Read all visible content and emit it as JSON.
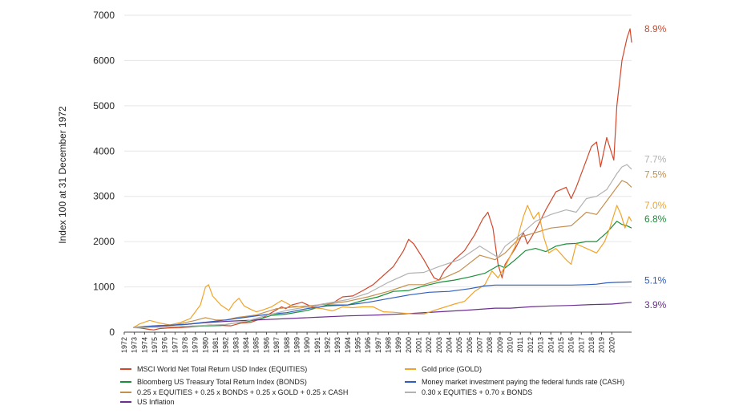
{
  "chart_data": {
    "type": "line",
    "ylabel": "Index 100 at 31 December 1972",
    "ylim": [
      0,
      7000
    ],
    "yticks": [
      "0",
      "1000",
      "2000",
      "3000",
      "4000",
      "5000",
      "6000",
      "7000"
    ],
    "xticks": [
      "1972",
      "1973",
      "1974",
      "1975",
      "1976",
      "1977",
      "1978",
      "1979",
      "1980",
      "1981",
      "1982",
      "1983",
      "1984",
      "1985",
      "1986",
      "1987",
      "1988",
      "1989",
      "1990",
      "1991",
      "1992",
      "1993",
      "1994",
      "1995",
      "1996",
      "1997",
      "1998",
      "1999",
      "2000",
      "2001",
      "2002",
      "2003",
      "2004",
      "2005",
      "2006",
      "2007",
      "2008",
      "2009",
      "2010",
      "2011",
      "2012",
      "2013",
      "2014",
      "2015",
      "2016",
      "2017",
      "2018",
      "2019",
      "2020"
    ],
    "grid": true,
    "legend_position": "bottom",
    "series": [
      {
        "name": "MSCI World Net Total Return USD Index (EQUITIES)",
        "color": "#d2472b",
        "end_label": "8.9%",
        "points": [
          [
            1972.9,
            100
          ],
          [
            1973.5,
            95
          ],
          [
            1974.5,
            60
          ],
          [
            1974.9,
            50
          ],
          [
            1975.5,
            80
          ],
          [
            1976.5,
            95
          ],
          [
            1977.5,
            100
          ],
          [
            1978.5,
            115
          ],
          [
            1979.5,
            135
          ],
          [
            1980.5,
            160
          ],
          [
            1981.5,
            150
          ],
          [
            1982.5,
            140
          ],
          [
            1983.5,
            200
          ],
          [
            1984.5,
            220
          ],
          [
            1985.5,
            300
          ],
          [
            1986.5,
            430
          ],
          [
            1987.5,
            560
          ],
          [
            1987.9,
            520
          ],
          [
            1988.5,
            600
          ],
          [
            1989.5,
            660
          ],
          [
            1990.5,
            560
          ],
          [
            1991.5,
            620
          ],
          [
            1992.5,
            640
          ],
          [
            1993.5,
            780
          ],
          [
            1994.5,
            800
          ],
          [
            1995.5,
            920
          ],
          [
            1996.5,
            1050
          ],
          [
            1997.5,
            1250
          ],
          [
            1998.5,
            1450
          ],
          [
            1999.5,
            1800
          ],
          [
            2000.0,
            2050
          ],
          [
            2000.5,
            1950
          ],
          [
            2001.5,
            1600
          ],
          [
            2002.5,
            1200
          ],
          [
            2003.0,
            1150
          ],
          [
            2003.5,
            1350
          ],
          [
            2004.5,
            1600
          ],
          [
            2005.5,
            1800
          ],
          [
            2006.5,
            2150
          ],
          [
            2007.3,
            2500
          ],
          [
            2007.8,
            2650
          ],
          [
            2008.3,
            2300
          ],
          [
            2008.8,
            1500
          ],
          [
            2009.2,
            1200
          ],
          [
            2009.5,
            1500
          ],
          [
            2010.5,
            1850
          ],
          [
            2011.3,
            2200
          ],
          [
            2011.7,
            1950
          ],
          [
            2012.5,
            2250
          ],
          [
            2013.5,
            2700
          ],
          [
            2014.5,
            3100
          ],
          [
            2015.5,
            3200
          ],
          [
            2016.0,
            2950
          ],
          [
            2016.5,
            3200
          ],
          [
            2017.5,
            3800
          ],
          [
            2018.0,
            4100
          ],
          [
            2018.5,
            4200
          ],
          [
            2018.9,
            3650
          ],
          [
            2019.5,
            4300
          ],
          [
            2020.2,
            3800
          ],
          [
            2020.5,
            5000
          ],
          [
            2021.0,
            6000
          ],
          [
            2021.5,
            6500
          ],
          [
            2021.8,
            6700
          ],
          [
            2021.95,
            6400
          ]
        ]
      },
      {
        "name": "Bloomberg US Treasury Total Return Index (BONDS)",
        "color": "#1a8f3a",
        "end_label": "6.8%",
        "points": [
          [
            1972.9,
            100
          ],
          [
            1975.0,
            110
          ],
          [
            1978.0,
            130
          ],
          [
            1980.0,
            140
          ],
          [
            1981.5,
            145
          ],
          [
            1982.5,
            190
          ],
          [
            1984.0,
            230
          ],
          [
            1985.5,
            300
          ],
          [
            1986.5,
            370
          ],
          [
            1988.0,
            400
          ],
          [
            1990.0,
            480
          ],
          [
            1992.0,
            600
          ],
          [
            1994.0,
            600
          ],
          [
            1995.5,
            700
          ],
          [
            1997.0,
            780
          ],
          [
            1998.5,
            900
          ],
          [
            2000.0,
            920
          ],
          [
            2001.5,
            1020
          ],
          [
            2003.0,
            1100
          ],
          [
            2004.5,
            1150
          ],
          [
            2006.0,
            1220
          ],
          [
            2007.5,
            1300
          ],
          [
            2008.9,
            1480
          ],
          [
            2009.5,
            1420
          ],
          [
            2010.5,
            1600
          ],
          [
            2011.5,
            1800
          ],
          [
            2012.5,
            1850
          ],
          [
            2013.5,
            1780
          ],
          [
            2014.5,
            1900
          ],
          [
            2015.5,
            1950
          ],
          [
            2016.5,
            1960
          ],
          [
            2017.5,
            2000
          ],
          [
            2018.5,
            2000
          ],
          [
            2019.5,
            2200
          ],
          [
            2020.5,
            2450
          ],
          [
            2021.0,
            2380
          ],
          [
            2021.5,
            2350
          ],
          [
            2021.95,
            2300
          ]
        ]
      },
      {
        "name": "0.25 x EQUITIES + 0.25 x BONDS + 0.25 x GOLD + 0.25 x CASH",
        "color": "#c4904f",
        "end_label": "7.5%",
        "points": [
          [
            1972.9,
            100
          ],
          [
            1974.0,
            130
          ],
          [
            1975.0,
            140
          ],
          [
            1977.0,
            160
          ],
          [
            1979.0,
            260
          ],
          [
            1980.0,
            320
          ],
          [
            1981.0,
            270
          ],
          [
            1982.0,
            270
          ],
          [
            1983.0,
            320
          ],
          [
            1985.0,
            380
          ],
          [
            1987.0,
            520
          ],
          [
            1988.0,
            540
          ],
          [
            1990.0,
            580
          ],
          [
            1992.0,
            620
          ],
          [
            1994.0,
            680
          ],
          [
            1996.0,
            780
          ],
          [
            1998.0,
            900
          ],
          [
            2000.0,
            1050
          ],
          [
            2001.5,
            1050
          ],
          [
            2003.0,
            1150
          ],
          [
            2005.0,
            1350
          ],
          [
            2007.0,
            1700
          ],
          [
            2008.5,
            1600
          ],
          [
            2009.5,
            1750
          ],
          [
            2011.0,
            2100
          ],
          [
            2012.5,
            2200
          ],
          [
            2014.0,
            2300
          ],
          [
            2016.0,
            2350
          ],
          [
            2017.5,
            2650
          ],
          [
            2018.5,
            2600
          ],
          [
            2019.5,
            2900
          ],
          [
            2020.5,
            3200
          ],
          [
            2021.0,
            3350
          ],
          [
            2021.5,
            3300
          ],
          [
            2021.95,
            3200
          ]
        ]
      },
      {
        "name": "US Inflation",
        "color": "#6b2f8f",
        "end_label": "3.9%",
        "points": [
          [
            1972.9,
            100
          ],
          [
            1975.0,
            130
          ],
          [
            1978.0,
            170
          ],
          [
            1980.0,
            210
          ],
          [
            1982.0,
            240
          ],
          [
            1985.0,
            270
          ],
          [
            1988.0,
            300
          ],
          [
            1991.0,
            330
          ],
          [
            1994.0,
            360
          ],
          [
            1997.0,
            380
          ],
          [
            2000.0,
            410
          ],
          [
            2003.0,
            450
          ],
          [
            2006.0,
            490
          ],
          [
            2008.5,
            530
          ],
          [
            2010.0,
            530
          ],
          [
            2012.0,
            560
          ],
          [
            2014.0,
            580
          ],
          [
            2016.0,
            590
          ],
          [
            2018.0,
            610
          ],
          [
            2020.0,
            620
          ],
          [
            2021.0,
            640
          ],
          [
            2021.95,
            660
          ]
        ]
      },
      {
        "name": "Gold price (GOLD)",
        "color": "#f0a42a",
        "end_label": "7.0%",
        "points": [
          [
            1972.9,
            100
          ],
          [
            1973.5,
            180
          ],
          [
            1974.5,
            260
          ],
          [
            1975.5,
            200
          ],
          [
            1976.5,
            160
          ],
          [
            1977.5,
            210
          ],
          [
            1978.5,
            300
          ],
          [
            1979.5,
            600
          ],
          [
            1980.0,
            1000
          ],
          [
            1980.3,
            1050
          ],
          [
            1980.7,
            800
          ],
          [
            1981.5,
            600
          ],
          [
            1982.3,
            480
          ],
          [
            1982.8,
            650
          ],
          [
            1983.3,
            750
          ],
          [
            1983.8,
            580
          ],
          [
            1984.5,
            500
          ],
          [
            1985.0,
            450
          ],
          [
            1985.5,
            480
          ],
          [
            1986.5,
            560
          ],
          [
            1987.5,
            700
          ],
          [
            1988.5,
            580
          ],
          [
            1989.5,
            560
          ],
          [
            1990.5,
            540
          ],
          [
            1991.5,
            520
          ],
          [
            1992.5,
            470
          ],
          [
            1993.5,
            560
          ],
          [
            1994.5,
            540
          ],
          [
            1995.5,
            560
          ],
          [
            1996.5,
            560
          ],
          [
            1997.5,
            450
          ],
          [
            1998.5,
            440
          ],
          [
            1999.5,
            420
          ],
          [
            2000.5,
            400
          ],
          [
            2001.5,
            400
          ],
          [
            2002.5,
            480
          ],
          [
            2003.5,
            550
          ],
          [
            2004.5,
            620
          ],
          [
            2005.5,
            680
          ],
          [
            2006.5,
            900
          ],
          [
            2007.5,
            1050
          ],
          [
            2008.2,
            1350
          ],
          [
            2008.8,
            1200
          ],
          [
            2009.5,
            1450
          ],
          [
            2010.5,
            1900
          ],
          [
            2011.3,
            2550
          ],
          [
            2011.7,
            2800
          ],
          [
            2012.3,
            2500
          ],
          [
            2012.8,
            2650
          ],
          [
            2013.3,
            2100
          ],
          [
            2013.8,
            1750
          ],
          [
            2014.5,
            1850
          ],
          [
            2015.5,
            1600
          ],
          [
            2016.0,
            1500
          ],
          [
            2016.5,
            1950
          ],
          [
            2017.5,
            1850
          ],
          [
            2018.5,
            1750
          ],
          [
            2019.3,
            2000
          ],
          [
            2019.8,
            2300
          ],
          [
            2020.5,
            2800
          ],
          [
            2020.9,
            2600
          ],
          [
            2021.3,
            2300
          ],
          [
            2021.7,
            2550
          ],
          [
            2021.95,
            2450
          ]
        ]
      },
      {
        "name": "Money market investment paying the federal funds rate (CASH)",
        "color": "#2f5fbe",
        "end_label": "5.1%",
        "points": [
          [
            1972.9,
            100
          ],
          [
            1975.0,
            140
          ],
          [
            1978.0,
            170
          ],
          [
            1980.0,
            220
          ],
          [
            1982.0,
            270
          ],
          [
            1984.0,
            330
          ],
          [
            1986.0,
            390
          ],
          [
            1988.0,
            430
          ],
          [
            1990.0,
            520
          ],
          [
            1992.0,
            580
          ],
          [
            1994.0,
            600
          ],
          [
            1996.0,
            660
          ],
          [
            1998.0,
            740
          ],
          [
            2000.0,
            820
          ],
          [
            2002.0,
            880
          ],
          [
            2004.0,
            900
          ],
          [
            2006.0,
            960
          ],
          [
            2007.5,
            1020
          ],
          [
            2008.5,
            1040
          ],
          [
            2010.0,
            1040
          ],
          [
            2012.0,
            1040
          ],
          [
            2014.0,
            1040
          ],
          [
            2016.0,
            1040
          ],
          [
            2017.5,
            1050
          ],
          [
            2018.5,
            1060
          ],
          [
            2019.5,
            1090
          ],
          [
            2020.5,
            1100
          ],
          [
            2021.95,
            1110
          ]
        ]
      },
      {
        "name": "0.30 x EQUITIES + 0.70 x BONDS",
        "color": "#b2b2b2",
        "end_label": "7.7%",
        "points": [
          [
            1972.9,
            100
          ],
          [
            1975.0,
            110
          ],
          [
            1978.0,
            130
          ],
          [
            1980.0,
            150
          ],
          [
            1982.0,
            170
          ],
          [
            1984.0,
            240
          ],
          [
            1986.0,
            370
          ],
          [
            1988.0,
            480
          ],
          [
            1990.0,
            560
          ],
          [
            1992.0,
            640
          ],
          [
            1994.0,
            720
          ],
          [
            1996.0,
            860
          ],
          [
            1998.0,
            1100
          ],
          [
            2000.0,
            1300
          ],
          [
            2001.5,
            1320
          ],
          [
            2003.0,
            1450
          ],
          [
            2005.0,
            1600
          ],
          [
            2007.0,
            1900
          ],
          [
            2008.8,
            1650
          ],
          [
            2009.5,
            1900
          ],
          [
            2011.0,
            2150
          ],
          [
            2012.5,
            2450
          ],
          [
            2014.0,
            2600
          ],
          [
            2015.5,
            2700
          ],
          [
            2016.5,
            2650
          ],
          [
            2017.5,
            2950
          ],
          [
            2018.5,
            3000
          ],
          [
            2019.5,
            3150
          ],
          [
            2020.5,
            3500
          ],
          [
            2021.0,
            3650
          ],
          [
            2021.5,
            3700
          ],
          [
            2021.95,
            3600
          ]
        ]
      }
    ]
  }
}
